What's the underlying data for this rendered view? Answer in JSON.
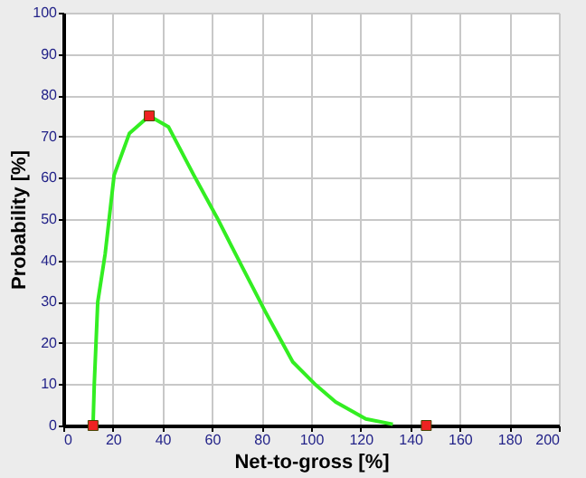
{
  "chart_data": {
    "type": "line",
    "xlabel": "Net-to-gross [%]",
    "ylabel": "Probability [%]",
    "xlim": [
      0,
      200
    ],
    "ylim": [
      0,
      100
    ],
    "xticks": [
      0,
      20,
      40,
      60,
      80,
      100,
      120,
      140,
      160,
      180,
      200
    ],
    "yticks": [
      0,
      10,
      20,
      30,
      40,
      50,
      60,
      70,
      80,
      90,
      100
    ],
    "grid": true,
    "series": [
      {
        "color": "#33ee22",
        "line_style": "solid",
        "marker": "none",
        "x": [
          12,
          12.5,
          13.9,
          16.9,
          20.5,
          26.7,
          34.7,
          42.5,
          52.7,
          62,
          72.2,
          81.6,
          92.6,
          101.4,
          109.9,
          122.1,
          133
        ],
        "values": [
          0,
          10,
          29.9,
          41.6,
          60.6,
          70.8,
          75,
          72.3,
          60.6,
          50.4,
          38.4,
          27.5,
          15.4,
          10.1,
          5.7,
          1.6,
          0.3
        ]
      },
      {
        "type": "scatter",
        "color": "#ee2222",
        "marker": "square",
        "x": [
          12,
          34.7,
          146.5
        ],
        "values": [
          0,
          75,
          0
        ]
      }
    ]
  }
}
